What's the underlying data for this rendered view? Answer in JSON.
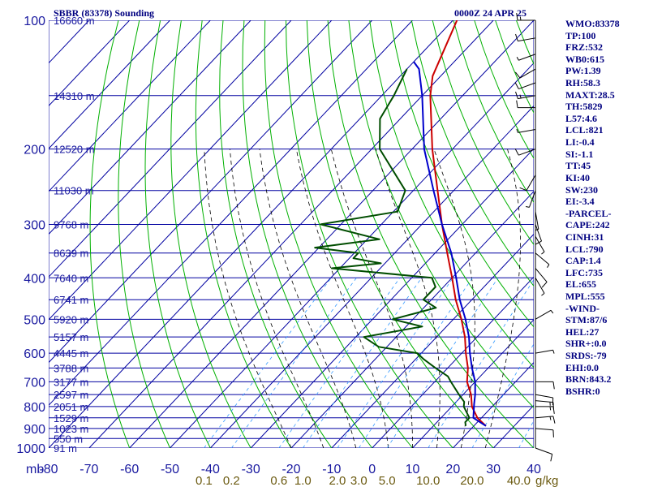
{
  "header": {
    "title": "SBBR (83378) Sounding",
    "datetime": "0000Z 24 APR 25"
  },
  "indices": [
    "WMO:83378",
    "TP:100",
    "FRZ:532",
    "WB0:615",
    "PW:1.39",
    "RH:58.3",
    "MAXT:28.5",
    "TH:5829",
    "L57:4.6",
    "LCL:821",
    "LI:-0.4",
    "SI:-1.1",
    "TT:45",
    "KI:40",
    "SW:230",
    "EI:-3.4",
    "-PARCEL-",
    "CAPE:242",
    "CINH:31",
    "LCL:790",
    "CAP:1.4",
    "LFC:735",
    "EL:655",
    "MPL:555",
    "-WIND-",
    "STM:87/6",
    "HEL:27",
    "SHR+:0.0",
    "SRDS:-79",
    "EHI:0.0",
    "BRN:843.2",
    "BSHR:0"
  ],
  "colors": {
    "isobar": "#0000a0",
    "isotherm": "#0000a0",
    "dry_adiabat": "#00b000",
    "moist_adiabat": "#000000",
    "mixing_ratio": "#3399ff",
    "temperature": "#cc0000",
    "dewpoint": "#004d00",
    "parcel": "#0000cc",
    "text": "#000080"
  },
  "chart_data": {
    "type": "line",
    "title": "SBBR (83378) Sounding",
    "xlabel": "°C",
    "ylabel": "mb",
    "xlim": [
      -80,
      40
    ],
    "ylim": [
      1000,
      100
    ],
    "skew_deg_per_log_decade": 100,
    "pressure_ticks": [
      "100",
      "200",
      "300",
      "400",
      "500",
      "600",
      "700",
      "800",
      "900",
      "1000"
    ],
    "pressure_unit": "mb",
    "isobar_levels": [
      100,
      150,
      200,
      250,
      300,
      350,
      400,
      450,
      500,
      550,
      600,
      650,
      700,
      750,
      800,
      850,
      900,
      950,
      1000
    ],
    "temperature_ticks": [
      "-80",
      "-70",
      "-60",
      "-50",
      "-40",
      "-30",
      "-20",
      "-10",
      "0",
      "10",
      "20",
      "30",
      "40"
    ],
    "height_labels": [
      {
        "p": 100,
        "text": "16660 m"
      },
      {
        "p": 150,
        "text": "14310 m"
      },
      {
        "p": 200,
        "text": "12520 m"
      },
      {
        "p": 250,
        "text": "11030 m"
      },
      {
        "p": 300,
        "text": "9768 m"
      },
      {
        "p": 350,
        "text": "8639 m"
      },
      {
        "p": 400,
        "text": "7640 m"
      },
      {
        "p": 450,
        "text": "6741 m"
      },
      {
        "p": 500,
        "text": "5920 m"
      },
      {
        "p": 550,
        "text": "5157 m"
      },
      {
        "p": 600,
        "text": "4445 m"
      },
      {
        "p": 650,
        "text": "3788 m"
      },
      {
        "p": 700,
        "text": "3177 m"
      },
      {
        "p": 750,
        "text": "2597 m"
      },
      {
        "p": 800,
        "text": "2051 m"
      },
      {
        "p": 850,
        "text": "1529 m"
      },
      {
        "p": 900,
        "text": "1023 m"
      },
      {
        "p": 950,
        "text": "550 m"
      },
      {
        "p": 1000,
        "text": "91 m"
      }
    ],
    "mixing_ratio_labels": [
      {
        "w": 0.1,
        "text": "0.1"
      },
      {
        "w": 0.2,
        "text": "0.2"
      },
      {
        "w": 0.6,
        "text": "0.6"
      },
      {
        "w": 1.0,
        "text": "1.0"
      },
      {
        "w": 2.0,
        "text": "2.0"
      },
      {
        "w": 3.0,
        "text": "3.0"
      },
      {
        "w": 5.0,
        "text": "5.0"
      },
      {
        "w": 10.0,
        "text": "10.0"
      },
      {
        "w": 20.0,
        "text": "20.0"
      },
      {
        "w": 40.0,
        "text": "40.0"
      }
    ],
    "mixing_ratio_unit": "g/kg",
    "series": [
      {
        "key": "temperature",
        "points": [
          [
            888,
            23
          ],
          [
            850,
            19
          ],
          [
            800,
            15
          ],
          [
            750,
            12
          ],
          [
            700,
            8
          ],
          [
            650,
            5
          ],
          [
            600,
            1
          ],
          [
            550,
            -3
          ],
          [
            500,
            -8
          ],
          [
            450,
            -14
          ],
          [
            400,
            -20
          ],
          [
            350,
            -27
          ],
          [
            300,
            -35
          ],
          [
            250,
            -44
          ],
          [
            200,
            -55
          ],
          [
            150,
            -68
          ],
          [
            135,
            -72
          ],
          [
            100,
            -79
          ]
        ]
      },
      {
        "key": "dewpoint",
        "points": [
          [
            888,
            18
          ],
          [
            870,
            17
          ],
          [
            850,
            17
          ],
          [
            800,
            13
          ],
          [
            780,
            12
          ],
          [
            750,
            9
          ],
          [
            700,
            4
          ],
          [
            680,
            2
          ],
          [
            650,
            -3
          ],
          [
            620,
            -8
          ],
          [
            600,
            -11
          ],
          [
            580,
            -22
          ],
          [
            550,
            -28
          ],
          [
            520,
            -16
          ],
          [
            500,
            -25
          ],
          [
            470,
            -17
          ],
          [
            450,
            -22
          ],
          [
            420,
            -22
          ],
          [
            400,
            -25
          ],
          [
            380,
            -52
          ],
          [
            370,
            -41
          ],
          [
            360,
            -49
          ],
          [
            350,
            -49
          ],
          [
            340,
            -61
          ],
          [
            325,
            -47
          ],
          [
            300,
            -65
          ],
          [
            280,
            -49
          ],
          [
            250,
            -52
          ],
          [
            200,
            -68
          ],
          [
            170,
            -75
          ],
          [
            150,
            -77
          ],
          [
            130,
            -80
          ]
        ]
      },
      {
        "key": "parcel",
        "points": [
          [
            888,
            23
          ],
          [
            850,
            18
          ],
          [
            790,
            15
          ],
          [
            750,
            13
          ],
          [
            700,
            10
          ],
          [
            650,
            6
          ],
          [
            600,
            2
          ],
          [
            550,
            -2
          ],
          [
            500,
            -7
          ],
          [
            450,
            -13
          ],
          [
            400,
            -19
          ],
          [
            350,
            -26
          ],
          [
            300,
            -35
          ],
          [
            250,
            -45
          ],
          [
            200,
            -57
          ],
          [
            150,
            -70
          ],
          [
            130,
            -77
          ],
          [
            125,
            -80
          ]
        ]
      }
    ],
    "winds": [
      {
        "p": 1000,
        "dir": 110,
        "kt": 10
      },
      {
        "p": 900,
        "dir": 95,
        "kt": 10
      },
      {
        "p": 850,
        "dir": 85,
        "kt": 15
      },
      {
        "p": 800,
        "dir": 90,
        "kt": 15
      },
      {
        "p": 775,
        "dir": 95,
        "kt": 15
      },
      {
        "p": 750,
        "dir": 100,
        "kt": 10
      },
      {
        "p": 700,
        "dir": 90,
        "kt": 10
      },
      {
        "p": 600,
        "dir": 80,
        "kt": 5
      },
      {
        "p": 500,
        "dir": 60,
        "kt": 5
      },
      {
        "p": 400,
        "dir": 150,
        "kt": 5
      },
      {
        "p": 380,
        "dir": 140,
        "kt": 10
      },
      {
        "p": 350,
        "dir": 130,
        "kt": 5
      },
      {
        "p": 320,
        "dir": 150,
        "kt": 5
      },
      {
        "p": 300,
        "dir": 160,
        "kt": 10
      },
      {
        "p": 280,
        "dir": 170,
        "kt": 5
      },
      {
        "p": 250,
        "dir": 200,
        "kt": 5
      },
      {
        "p": 230,
        "dir": 210,
        "kt": 10
      },
      {
        "p": 200,
        "dir": 250,
        "kt": 10
      },
      {
        "p": 180,
        "dir": 260,
        "kt": 5
      },
      {
        "p": 160,
        "dir": 270,
        "kt": 10
      },
      {
        "p": 150,
        "dir": 260,
        "kt": 15
      },
      {
        "p": 140,
        "dir": 250,
        "kt": 10
      },
      {
        "p": 130,
        "dir": 240,
        "kt": 10
      },
      {
        "p": 120,
        "dir": 250,
        "kt": 5
      },
      {
        "p": 110,
        "dir": 260,
        "kt": 10
      },
      {
        "p": 100,
        "dir": 270,
        "kt": 15
      }
    ],
    "grid": true,
    "legend": "none"
  }
}
